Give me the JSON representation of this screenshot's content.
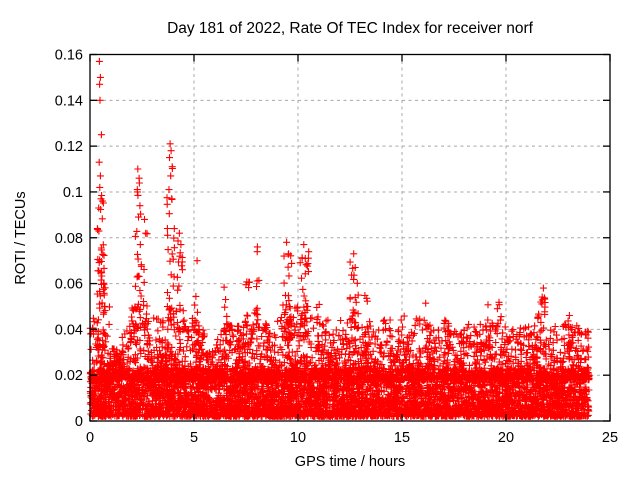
{
  "chart_data": {
    "type": "scatter",
    "title": "Day 181 of 2022, Rate Of TEC Index for receiver norf",
    "xlabel": "GPS time / hours",
    "ylabel": "ROTI / TECUs",
    "xlim": [
      0,
      25
    ],
    "ylim": [
      0,
      0.16
    ],
    "xticks": [
      {
        "v": 0,
        "label": "0"
      },
      {
        "v": 5,
        "label": "5"
      },
      {
        "v": 10,
        "label": "10"
      },
      {
        "v": 15,
        "label": "15"
      },
      {
        "v": 20,
        "label": "20"
      },
      {
        "v": 25,
        "label": "25"
      }
    ],
    "yticks": [
      {
        "v": 0,
        "label": "0"
      },
      {
        "v": 0.02,
        "label": "0.02"
      },
      {
        "v": 0.04,
        "label": "0.04"
      },
      {
        "v": 0.06,
        "label": "0.06"
      },
      {
        "v": 0.08,
        "label": "0.08"
      },
      {
        "v": 0.1,
        "label": "0.1"
      },
      {
        "v": 0.12,
        "label": "0.12"
      },
      {
        "v": 0.14,
        "label": "0.14"
      },
      {
        "v": 0.16,
        "label": "0.16"
      }
    ],
    "grid": {
      "on": true,
      "color": "#a8a8a8",
      "dash": "3,3.5"
    },
    "frame_color": "#000000",
    "marker": {
      "shape": "plus",
      "color": "#ff0000",
      "size": 7,
      "stroke_width": 1.1
    },
    "legend": "none",
    "x_data_range": [
      0,
      24
    ],
    "n_points_approx": 8200,
    "seed": 181,
    "base_band": {
      "n": 5200,
      "y_min": 0.002,
      "y_max": 0.023,
      "skew": 1.6
    },
    "texture_band": {
      "n": 2600,
      "y_min": 0.018,
      "skew": 2.2,
      "env_halfhour": [
        0.045,
        0.05,
        0.032,
        0.042,
        0.05,
        0.045,
        0.045,
        0.05,
        0.05,
        0.045,
        0.04,
        0.032,
        0.042,
        0.045,
        0.042,
        0.05,
        0.045,
        0.04,
        0.05,
        0.055,
        0.05,
        0.05,
        0.045,
        0.04,
        0.045,
        0.05,
        0.045,
        0.04,
        0.045,
        0.04,
        0.042,
        0.045,
        0.045,
        0.04,
        0.045,
        0.042,
        0.045,
        0.042,
        0.045,
        0.042,
        0.04,
        0.042,
        0.042,
        0.048,
        0.042,
        0.044,
        0.042,
        0.04
      ]
    },
    "clusters": [
      {
        "x": 0.55,
        "spread": 0.2,
        "n": 55,
        "y0": 0.03,
        "y1": 0.1
      },
      {
        "x": 2.33,
        "spread": 0.15,
        "n": 22,
        "y0": 0.04,
        "y1": 0.105
      },
      {
        "x": 2.65,
        "spread": 0.1,
        "n": 10,
        "y0": 0.04,
        "y1": 0.085
      },
      {
        "x": 3.88,
        "spread": 0.18,
        "n": 28,
        "y0": 0.04,
        "y1": 0.115
      },
      {
        "x": 4.35,
        "spread": 0.15,
        "n": 16,
        "y0": 0.04,
        "y1": 0.08
      },
      {
        "x": 5.15,
        "spread": 0.12,
        "n": 10,
        "y0": 0.035,
        "y1": 0.068
      },
      {
        "x": 6.55,
        "spread": 0.12,
        "n": 9,
        "y0": 0.035,
        "y1": 0.06
      },
      {
        "x": 7.6,
        "spread": 0.15,
        "n": 9,
        "y0": 0.035,
        "y1": 0.063
      },
      {
        "x": 8.05,
        "spread": 0.1,
        "n": 8,
        "y0": 0.04,
        "y1": 0.074
      },
      {
        "x": 9.5,
        "spread": 0.25,
        "n": 28,
        "y0": 0.035,
        "y1": 0.076
      },
      {
        "x": 10.3,
        "spread": 0.22,
        "n": 24,
        "y0": 0.035,
        "y1": 0.075
      },
      {
        "x": 11.0,
        "spread": 0.15,
        "n": 9,
        "y0": 0.03,
        "y1": 0.055
      },
      {
        "x": 12.7,
        "spread": 0.2,
        "n": 18,
        "y0": 0.035,
        "y1": 0.071
      },
      {
        "x": 13.3,
        "spread": 0.15,
        "n": 8,
        "y0": 0.03,
        "y1": 0.055
      },
      {
        "x": 14.95,
        "spread": 0.2,
        "n": 8,
        "y0": 0.03,
        "y1": 0.05
      },
      {
        "x": 16.2,
        "spread": 0.15,
        "n": 8,
        "y0": 0.03,
        "y1": 0.052
      },
      {
        "x": 17.4,
        "spread": 0.2,
        "n": 8,
        "y0": 0.03,
        "y1": 0.052
      },
      {
        "x": 18.9,
        "spread": 0.25,
        "n": 10,
        "y0": 0.03,
        "y1": 0.053
      },
      {
        "x": 19.7,
        "spread": 0.15,
        "n": 8,
        "y0": 0.03,
        "y1": 0.052
      },
      {
        "x": 21.8,
        "spread": 0.18,
        "n": 12,
        "y0": 0.035,
        "y1": 0.058
      },
      {
        "x": 23.0,
        "spread": 0.2,
        "n": 8,
        "y0": 0.03,
        "y1": 0.05
      }
    ],
    "outliers": [
      [
        0.45,
        0.157
      ],
      [
        0.5,
        0.15
      ],
      [
        0.46,
        0.147
      ],
      [
        0.48,
        0.14
      ],
      [
        0.55,
        0.125
      ],
      [
        0.44,
        0.113
      ],
      [
        0.5,
        0.107
      ],
      [
        0.47,
        0.102
      ],
      [
        0.53,
        0.097
      ],
      [
        0.42,
        0.093
      ],
      [
        2.3,
        0.11
      ],
      [
        2.36,
        0.106
      ],
      [
        2.28,
        0.1
      ],
      [
        2.4,
        0.094
      ],
      [
        2.33,
        0.089
      ],
      [
        2.62,
        0.088
      ],
      [
        2.68,
        0.082
      ],
      [
        3.85,
        0.121
      ],
      [
        3.9,
        0.118
      ],
      [
        3.82,
        0.115
      ],
      [
        3.95,
        0.111
      ],
      [
        3.88,
        0.107
      ],
      [
        3.8,
        0.101
      ],
      [
        3.93,
        0.097
      ],
      [
        4.3,
        0.082
      ],
      [
        4.37,
        0.077
      ],
      [
        5.15,
        0.07
      ],
      [
        8.05,
        0.076
      ],
      [
        9.45,
        0.078
      ],
      [
        9.55,
        0.073
      ],
      [
        10.28,
        0.077
      ],
      [
        10.35,
        0.071
      ],
      [
        12.68,
        0.073
      ],
      [
        12.75,
        0.067
      ],
      [
        21.8,
        0.058
      ]
    ]
  }
}
